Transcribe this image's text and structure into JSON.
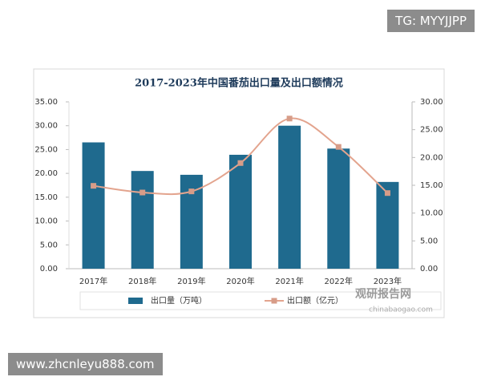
{
  "watermarks": {
    "top": "TG: MYYJJPP",
    "bottom": "www.zhcnleyu888.com"
  },
  "source": {
    "name": "观研报告网",
    "url": "chinabaogao.com"
  },
  "chart_data": {
    "type": "bar",
    "title": "2017-2023年中国番茄出口量及出口额情况",
    "categories": [
      "2017年",
      "2018年",
      "2019年",
      "2020年",
      "2021年",
      "2022年",
      "2023年"
    ],
    "series": [
      {
        "name": "出口量（万吨）",
        "type": "bar",
        "color": "#1f6a8e",
        "values": [
          26.5,
          20.5,
          19.7,
          23.9,
          30.0,
          25.2,
          18.2
        ]
      },
      {
        "name": "出口额（亿元）",
        "type": "line",
        "axis": "y2",
        "color": "#e3a48e",
        "values": [
          14.9,
          13.7,
          13.9,
          19.0,
          27.0,
          21.9,
          13.6
        ]
      }
    ],
    "ylim": [
      0,
      35
    ],
    "yticks": [
      {
        "value": 0,
        "label": "0.00"
      },
      {
        "value": 5,
        "label": "5.00"
      },
      {
        "value": 10,
        "label": "10.00"
      },
      {
        "value": 15,
        "label": "15.00"
      },
      {
        "value": 20,
        "label": "20.00"
      },
      {
        "value": 25,
        "label": "25.00"
      },
      {
        "value": 30,
        "label": "30.00"
      },
      {
        "value": 35,
        "label": "35.00"
      }
    ],
    "y2lim": [
      0,
      30
    ],
    "y2ticks": [
      {
        "value": 0,
        "label": "0.00"
      },
      {
        "value": 5,
        "label": "5.00"
      },
      {
        "value": 10,
        "label": "10.00"
      },
      {
        "value": 15,
        "label": "15.00"
      },
      {
        "value": 20,
        "label": "20.00"
      },
      {
        "value": 25,
        "label": "25.00"
      },
      {
        "value": 30,
        "label": "30.00"
      }
    ],
    "grid": false,
    "smooth": true
  }
}
